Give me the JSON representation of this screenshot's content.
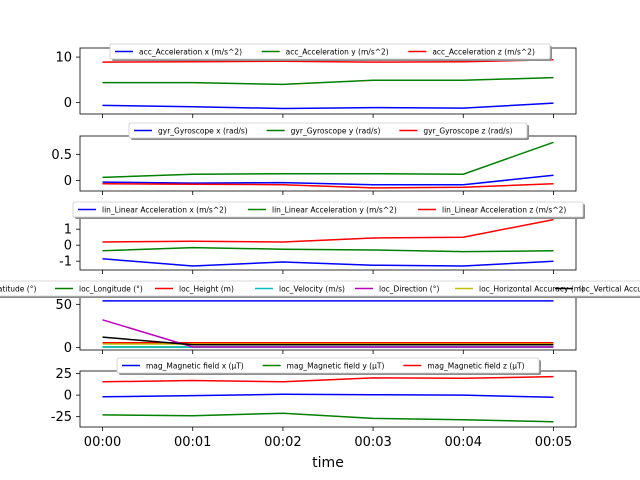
{
  "figure": {
    "xlabel": "time",
    "x_ticks": [
      "00:00",
      "00:01",
      "00:02",
      "00:03",
      "00:04",
      "00:05"
    ]
  },
  "chart_data": [
    {
      "type": "line",
      "x": [
        "00:00",
        "00:01",
        "00:02",
        "00:03",
        "00:04",
        "00:05"
      ],
      "ylim": [
        -2.5,
        12
      ],
      "yticks": [
        0,
        10
      ],
      "legend": "top-center",
      "series": [
        {
          "name": "acc_Acceleration x (m/s^2)",
          "color": "#0000ff",
          "values": [
            -0.6,
            -0.9,
            -1.3,
            -1.1,
            -1.2,
            -0.1
          ]
        },
        {
          "name": "acc_Acceleration y (m/s^2)",
          "color": "#008000",
          "values": [
            4.4,
            4.4,
            4.0,
            4.9,
            4.9,
            5.5
          ]
        },
        {
          "name": "acc_Acceleration z (m/s^2)",
          "color": "#ff0000",
          "values": [
            8.9,
            9.0,
            9.1,
            8.9,
            9.0,
            9.4
          ]
        }
      ]
    },
    {
      "type": "line",
      "x": [
        "00:00",
        "00:01",
        "00:02",
        "00:03",
        "00:04",
        "00:05"
      ],
      "ylim": [
        -0.2,
        0.85
      ],
      "yticks": [
        0.0,
        0.5
      ],
      "legend": "top-center",
      "series": [
        {
          "name": "gyr_Gyroscope x (rad/s)",
          "color": "#0000ff",
          "values": [
            -0.03,
            -0.05,
            -0.04,
            -0.08,
            -0.08,
            0.1
          ]
        },
        {
          "name": "gyr_Gyroscope y (rad/s)",
          "color": "#008000",
          "values": [
            0.06,
            0.12,
            0.13,
            0.13,
            0.12,
            0.73
          ]
        },
        {
          "name": "gyr_Gyroscope z (rad/s)",
          "color": "#ff0000",
          "values": [
            -0.06,
            -0.07,
            -0.08,
            -0.14,
            -0.13,
            -0.06
          ]
        }
      ]
    },
    {
      "type": "line",
      "x": [
        "00:00",
        "00:01",
        "00:02",
        "00:03",
        "00:04",
        "00:05"
      ],
      "ylim": [
        -1.55,
        1.95
      ],
      "yticks": [
        -1,
        0,
        1
      ],
      "legend": "top-center",
      "series": [
        {
          "name": "lin_Linear Acceleration x (m/s^2)",
          "color": "#0000ff",
          "values": [
            -0.85,
            -1.3,
            -1.05,
            -1.25,
            -1.3,
            -1.0
          ]
        },
        {
          "name": "lin_Linear Acceleration y (m/s^2)",
          "color": "#008000",
          "values": [
            -0.35,
            -0.15,
            -0.25,
            -0.3,
            -0.4,
            -0.35
          ]
        },
        {
          "name": "lin_Linear Acceleration z (m/s^2)",
          "color": "#ff0000",
          "values": [
            0.2,
            0.25,
            0.2,
            0.45,
            0.5,
            1.6
          ]
        }
      ]
    },
    {
      "type": "line",
      "x": [
        "00:00",
        "00:01",
        "00:02",
        "00:03",
        "00:04",
        "00:05"
      ],
      "ylim": [
        -3,
        62
      ],
      "yticks": [
        0,
        50
      ],
      "legend": "top-center",
      "series": [
        {
          "name": "loc_Latitude (°)",
          "color": "#0000ff",
          "values": [
            54,
            54,
            54,
            54,
            54,
            54
          ]
        },
        {
          "name": "loc_Longitude (°)",
          "color": "#008000",
          "values": [
            0.5,
            0.5,
            0.5,
            0.5,
            0.5,
            0.5
          ]
        },
        {
          "name": "loc_Height (m)",
          "color": "#ff0000",
          "values": [
            5.5,
            5.5,
            5.5,
            5.5,
            5.5,
            5.5
          ]
        },
        {
          "name": "loc_Velocity (m/s)",
          "color": "#00bfbf",
          "values": [
            0.5,
            0.3,
            0.3,
            0.3,
            0.3,
            0.3
          ]
        },
        {
          "name": "loc_Direction (°)",
          "color": "#bf00bf",
          "values": [
            32,
            0.5,
            0.5,
            0.5,
            0.5,
            0.5
          ]
        },
        {
          "name": "loc_Horizontal Accuracy (m)",
          "color": "#bfbf00",
          "values": [
            4,
            4,
            4,
            4,
            4,
            4
          ]
        },
        {
          "name": "loc_Vertical Accuracy (m)",
          "color": "#000000",
          "values": [
            12,
            3,
            3,
            3,
            3,
            3
          ]
        }
      ]
    },
    {
      "type": "line",
      "x": [
        "00:00",
        "00:01",
        "00:02",
        "00:03",
        "00:04",
        "00:05"
      ],
      "ylim": [
        -37,
        28
      ],
      "yticks": [
        -25,
        0,
        25
      ],
      "legend": "top-center",
      "series": [
        {
          "name": "mag_Magnetic field x (µT)",
          "color": "#0000ff",
          "values": [
            -2,
            -0.5,
            1,
            0.5,
            0,
            -2.5
          ]
        },
        {
          "name": "mag_Magnetic field y (µT)",
          "color": "#008000",
          "values": [
            -23,
            -24,
            -21,
            -27,
            -28.5,
            -31
          ]
        },
        {
          "name": "mag_Magnetic field z (µT)",
          "color": "#ff0000",
          "values": [
            15.5,
            17,
            15.5,
            20,
            19.5,
            21.5
          ]
        }
      ]
    }
  ]
}
